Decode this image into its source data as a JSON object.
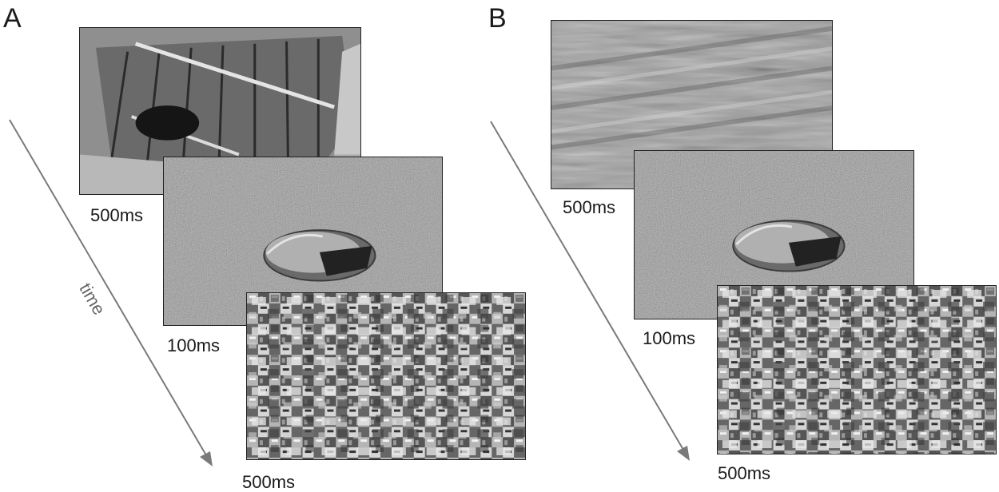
{
  "panels": [
    {
      "letter": "A",
      "durations": {
        "scene": "500ms",
        "target": "100ms",
        "mask": "500ms"
      },
      "axis_label": "time"
    },
    {
      "letter": "B",
      "durations": {
        "scene": "500ms",
        "target": "100ms",
        "mask": "500ms"
      }
    }
  ],
  "colors": {
    "arrow": "#7a7a7a",
    "frame_border": "#222222",
    "noise_base": "#8c8c8c"
  }
}
